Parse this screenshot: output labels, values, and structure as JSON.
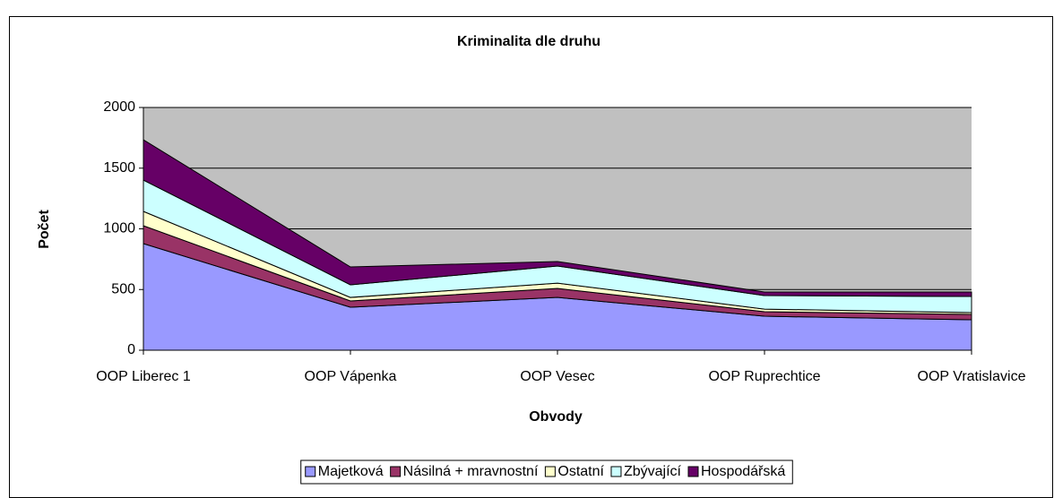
{
  "chart_data": {
    "type": "area",
    "stacked": true,
    "title": "Kriminalita dle druhu",
    "x_label": "Obvody",
    "y_label": "Počet",
    "categories": [
      "OOP Liberec 1",
      "OOP Vápenka",
      "OOP Vesec",
      "OOP Ruprechtice",
      "OOP Vratislavice"
    ],
    "series": [
      {
        "name": "Majetková",
        "color": "#9999ff",
        "values": [
          878,
          354,
          435,
          280,
          251
        ]
      },
      {
        "name": "Násilná + mravnostní",
        "color": "#993366",
        "values": [
          148,
          52,
          74,
          37,
          44
        ]
      },
      {
        "name": "Ostatní",
        "color": "#ffffcc",
        "values": [
          118,
          29,
          44,
          22,
          15
        ]
      },
      {
        "name": "Zbývající",
        "color": "#ccffff",
        "values": [
          258,
          104,
          141,
          111,
          133
        ]
      },
      {
        "name": "Hospodářská",
        "color": "#660066",
        "values": [
          332,
          147,
          37,
          30,
          37
        ]
      }
    ],
    "ylim": [
      0,
      2000
    ],
    "yticks": [
      0,
      500,
      1000,
      1500,
      2000
    ],
    "grid": true,
    "plot_background": "#c0c0c0",
    "legend": "bottom"
  }
}
